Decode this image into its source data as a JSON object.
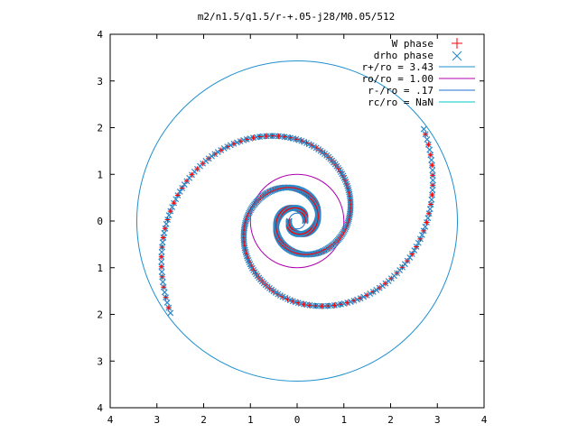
{
  "chart_data": {
    "type": "scatter",
    "title": "m2/n1.5/q1.5/r-+.05-j28/M0.05/512",
    "xlabel": "",
    "ylabel": "",
    "xlim": [
      -4,
      4
    ],
    "ylim": [
      -4,
      4
    ],
    "x_ticks": [
      "4",
      "3",
      "2",
      "1",
      "0",
      "1",
      "2",
      "3",
      "4"
    ],
    "y_ticks": [
      "4",
      "3",
      "2",
      "1",
      "0",
      "1",
      "2",
      "3",
      "4"
    ],
    "grid": false,
    "legend_position": "top-right",
    "series": [
      {
        "name": "W phase",
        "marker": "plus",
        "color": "#ff0000"
      },
      {
        "name": "drho phase",
        "marker": "cross",
        "color": "#2a88c8"
      }
    ],
    "spiral": {
      "r_inner": 0.17,
      "r_outer": 3.35,
      "turns": 1.6,
      "arms": 2,
      "theta_start_deg": 0
    },
    "circles": [
      {
        "name": "r+/ro = 3.43",
        "r": 3.43,
        "color": "#1f8fcf"
      },
      {
        "name": "ro/ro = 1.00",
        "r": 1.0,
        "color": "#b000b0"
      },
      {
        "name": "r-/ro = .17",
        "r": 0.17,
        "color": "#1f6fcf"
      },
      {
        "name": "rc/ro = NaN",
        "r": null,
        "color": "#00c8c8"
      }
    ]
  }
}
